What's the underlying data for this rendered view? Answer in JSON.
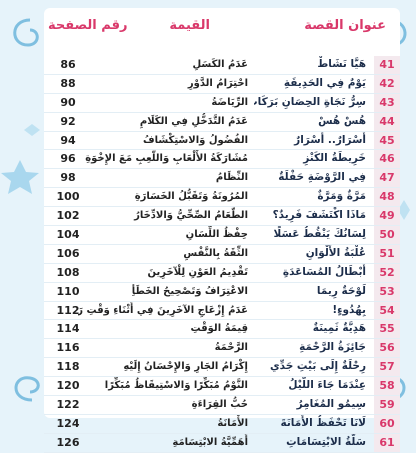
{
  "header": {
    "title_col": "عنوان القصة",
    "value_col": "القيمة",
    "page_col": "رقم الصفحة"
  },
  "table": {
    "rows": [
      [
        41,
        "هَيَّا نَشَاطْ",
        "عَدَمُ الكَسَلِ",
        86
      ],
      [
        42,
        "يَوْمٌ فِي الحَدِيقَةِ",
        "احْتِرَامُ الدَّوْرِ",
        88
      ],
      [
        43,
        "سِرُّ نَجَاةِ الحِصَانِ بَرَكَات",
        "الرِّيَاضَةُ",
        90
      ],
      [
        44,
        "هُسْ هُسْ",
        "عَدَمُ التَّدَخُّلِ فِي الكَلَامِ",
        92
      ],
      [
        45,
        "أَسْرَارٌ.. أَسْرَارٌ",
        "الفُضُولُ وَالاسْتِكْشَافُ",
        94
      ],
      [
        46,
        "خَرِيطَةُ الكَنْزِ",
        "مُشَارَكَةُ الأَلْعَابِ وَاللَّعِبِ مَعَ الإِخْوَةِ",
        96
      ],
      [
        47,
        "فِي الرَّوْضَةِ حَفْلَةٌ",
        "النِّظَامُ",
        98
      ],
      [
        48,
        "مَرَّةٌ وَمَرَّةٌ",
        "المُرُونَةُ وَتَقَبُّلُ الخَسَارَةِ",
        100
      ],
      [
        49,
        "مَاذَا اكْتَشَفَ فَرِيدٌ؟",
        "الطَّعَامُ الصِّحِّيُّ وَالادِّخَارُ",
        102
      ],
      [
        50,
        "لِسَانُكَ يَنْقُطُ عَسَلًا",
        "حِفْظُ اللِّسَانِ",
        104
      ],
      [
        51,
        "عُلْبَةُ الأَلْوَانِ",
        "الثِّقَةُ بِالنَّفْسِ",
        106
      ],
      [
        52,
        "أَبْطَالُ المُسَاعَدَةِ",
        "تَقْدِيمُ العَوْنِ لِلْآخَرِينَ",
        108
      ],
      [
        53,
        "لَوْحَةٌ رِيمَا",
        "الاعْتِرَافُ وَتَصْحِيحُ الخَطَأِ",
        110
      ],
      [
        54,
        "بِهُدُوءٍ!",
        "عَدَمُ إِزْعَاجِ الآخَرِينَ فِي أَثْنَاءِ وَقْتِ رَاحَتِهِمْ",
        112
      ],
      [
        55,
        "هَدِيَّةٌ ثَمِينَةٌ",
        "قِيمَةُ الوَقْتِ",
        114
      ],
      [
        56,
        "جَائِزَةُ الرَّحْمَةِ",
        "الرَّحْمَةُ",
        116
      ],
      [
        57,
        "رِحْلَةٌ إِلَى بَيْتِ جَدِّي",
        "إِكْرَامُ الجَارِ وَالإِحْسَانُ إِلَيْهِ",
        118
      ],
      [
        58,
        "عِنْدَمَا جَاءَ اللَّيْلُ",
        "النَّوْمُ مُبَكِّرًا وَالاسْتِيقَاظُ مُبَكِّرًا",
        120
      ],
      [
        59,
        "سِيمُو المُغَامِرُ",
        "حُبُّ القِرَاءَةِ",
        122
      ],
      [
        60,
        "لَانَا تَحْفَظُ الأَمَانَةَ",
        "الأَمَانَةُ",
        124
      ],
      [
        61,
        "سَلَّةُ الابْتِسَامَاتِ",
        "أَهَمِّيَّةُ الابْتِسَامَةِ",
        126
      ]
    ]
  }
}
